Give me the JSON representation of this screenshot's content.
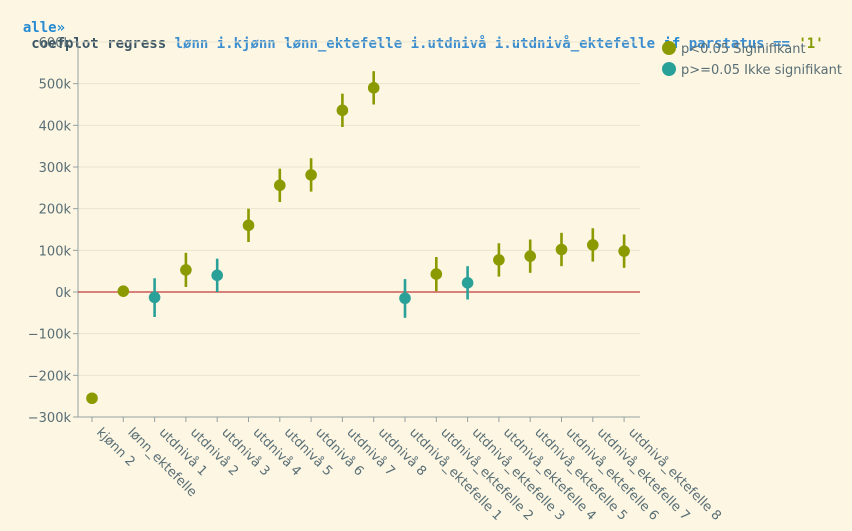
{
  "command": {
    "prompt": "alle»",
    "tokens": [
      {
        "text": "coefplot regress",
        "color": "#3b5563"
      },
      {
        "text": "lønn i.kjønn lønn_ektefelle i.utdnivå i.utdnivå_ektefelle",
        "color": "#3c8ecf"
      },
      {
        "text": "if",
        "color": "#268bd2"
      },
      {
        "text": "parstatus ==",
        "color": "#3c8ecf"
      },
      {
        "text": "'1'",
        "color": "#859900"
      }
    ]
  },
  "chart_data": {
    "type": "scatter",
    "title": "",
    "xlabel": "",
    "ylabel": "",
    "ylim": [
      -300000,
      600000
    ],
    "yticks": [
      {
        "value": 600000,
        "label": "600k"
      },
      {
        "value": 500000,
        "label": "500k"
      },
      {
        "value": 400000,
        "label": "400k"
      },
      {
        "value": 300000,
        "label": "300k"
      },
      {
        "value": 200000,
        "label": "200k"
      },
      {
        "value": 100000,
        "label": "100k"
      },
      {
        "value": 0,
        "label": "0k"
      },
      {
        "value": -100000,
        "label": "−100k"
      },
      {
        "value": -200000,
        "label": "−200k"
      },
      {
        "value": -300000,
        "label": "−300k"
      }
    ],
    "grid": true,
    "reference_line": {
      "value": 0,
      "color": "#c23b3b"
    },
    "legend_position": "top-right",
    "legend": [
      {
        "label": "p<0.05 Siginifikant",
        "color": "#8a9a00"
      },
      {
        "label": "p>=0.05 Ikke signifikant",
        "color": "#2aa198"
      }
    ],
    "colors": {
      "significant": "#8a9a00",
      "not_significant": "#2aa198"
    },
    "points": [
      {
        "label": "kjønn 2",
        "value": -255000,
        "ci": null,
        "significant": true
      },
      {
        "label": "lønn_ektefelle",
        "value": 2000,
        "ci": null,
        "significant": true
      },
      {
        "label": "utdnivå 1",
        "value": -13000,
        "ci": [
          -60000,
          33000
        ],
        "significant": false
      },
      {
        "label": "utdnivå 2",
        "value": 53000,
        "ci": [
          12000,
          94000
        ],
        "significant": true
      },
      {
        "label": "utdnivå 3",
        "value": 40000,
        "ci": [
          0,
          80000
        ],
        "significant": false
      },
      {
        "label": "utdnivå 4",
        "value": 160000,
        "ci": [
          120000,
          200000
        ],
        "significant": true
      },
      {
        "label": "utdnivå 5",
        "value": 256000,
        "ci": [
          216000,
          296000
        ],
        "significant": true
      },
      {
        "label": "utdnivå 6",
        "value": 281000,
        "ci": [
          241000,
          321000
        ],
        "significant": true
      },
      {
        "label": "utdnivå 7",
        "value": 436000,
        "ci": [
          396000,
          476000
        ],
        "significant": true
      },
      {
        "label": "utdnivå 8",
        "value": 490000,
        "ci": [
          450000,
          530000
        ],
        "significant": true
      },
      {
        "label": "utdnivå_ektefelle 1",
        "value": -15000,
        "ci": [
          -62000,
          31000
        ],
        "significant": false
      },
      {
        "label": "utdnivå_ektefelle 2",
        "value": 43000,
        "ci": [
          2000,
          84000
        ],
        "significant": true
      },
      {
        "label": "utdnivå_ektefelle 3",
        "value": 22000,
        "ci": [
          -18000,
          62000
        ],
        "significant": false
      },
      {
        "label": "utdnivå_ektefelle 4",
        "value": 77000,
        "ci": [
          37000,
          117000
        ],
        "significant": true
      },
      {
        "label": "utdnivå_ektefelle 5",
        "value": 86000,
        "ci": [
          46000,
          126000
        ],
        "significant": true
      },
      {
        "label": "utdnivå_ektefelle 6",
        "value": 102000,
        "ci": [
          62000,
          142000
        ],
        "significant": true
      },
      {
        "label": "utdnivå_ektefelle 7",
        "value": 113000,
        "ci": [
          73000,
          153000
        ],
        "significant": true
      },
      {
        "label": "utdnivå_ektefelle 8",
        "value": 98000,
        "ci": [
          58000,
          138000
        ],
        "significant": true
      }
    ]
  }
}
